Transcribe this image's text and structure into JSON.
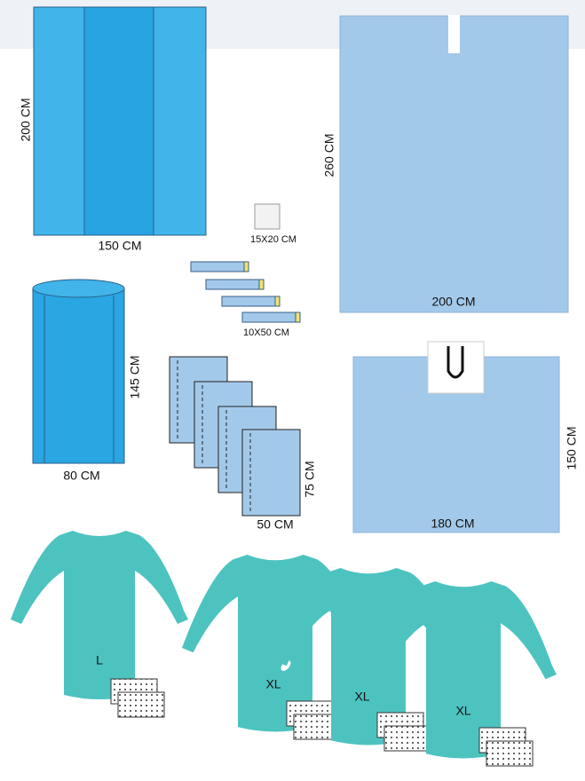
{
  "large_drape": {
    "height": "200 CM",
    "width": "150 CM"
  },
  "towel": {
    "size": "15X20 CM"
  },
  "tapes": {
    "size": "10X50 CM"
  },
  "split_drape": {
    "height": "260 CM",
    "width": "200 CM"
  },
  "leg_cover": {
    "height": "145 CM",
    "width": "80 CM"
  },
  "small_drapes": {
    "height": "75 CM",
    "width": "50 CM"
  },
  "u_drape": {
    "height": "150 CM",
    "width": "180 CM"
  },
  "gowns": [
    "L",
    "XL",
    "XL",
    "XL"
  ]
}
